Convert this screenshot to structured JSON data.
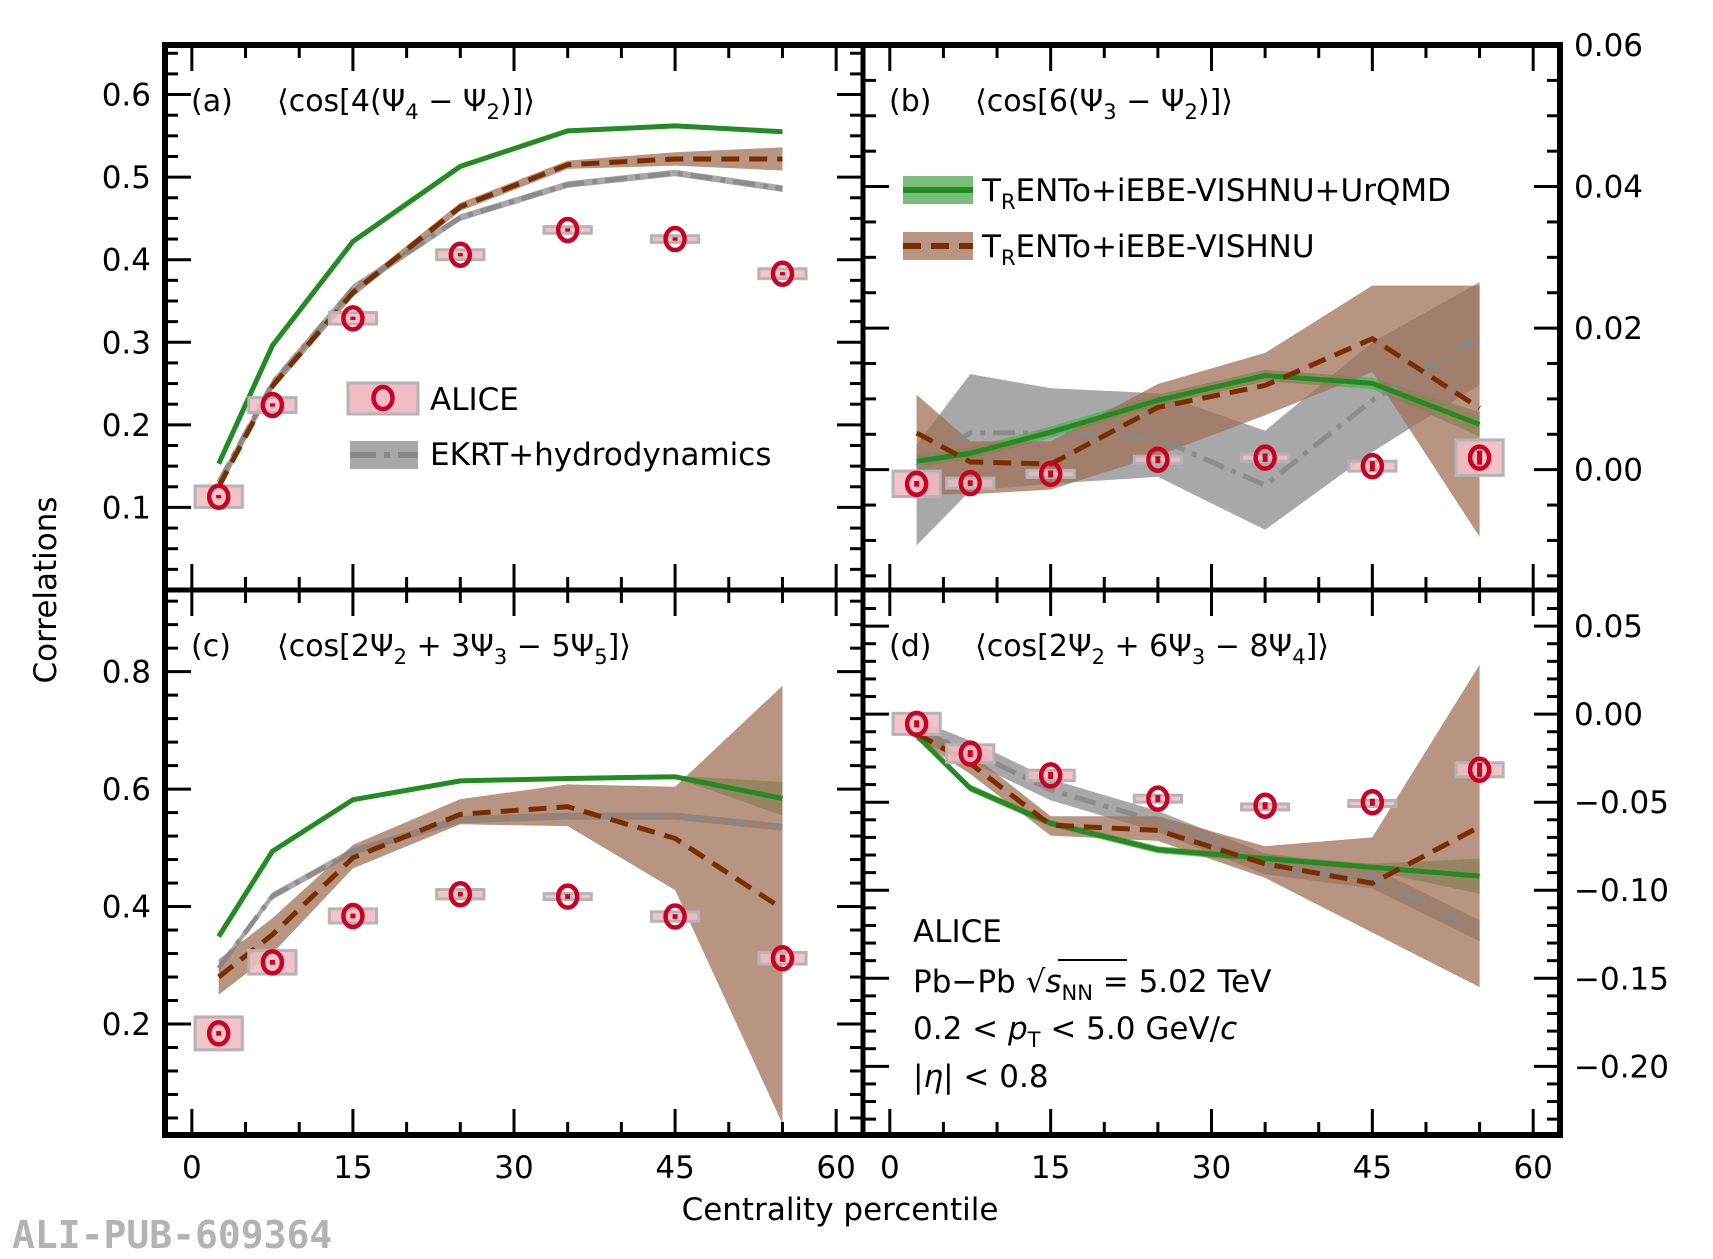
{
  "chart_data": {
    "type": "line",
    "figure": {
      "xlabel": "Centrality percentile",
      "ylabel": "Correlations",
      "watermark": "ALI-PUB-609364",
      "info_lines": [
        "ALICE",
        "Pb−Pb √s_NN = 5.02 TeV",
        "0.2 < p_T < 5.0 GeV/c",
        "|η| < 0.8"
      ],
      "info_panel": "d",
      "colors": {
        "alice_marker": "#cc0022",
        "alice_box": "#f2bcc4",
        "alice_box_edge": "#b4b4b4",
        "trento_urqmd_line": "#228b22",
        "trento_urqmd_band": "#5aae5a",
        "trento_line": "#7a2e00",
        "trento_band": "#a0705a",
        "ekrt_line": "#888888",
        "ekrt_band": "#999999"
      }
    },
    "legends": [
      {
        "panel": "a",
        "location": "center",
        "entries": [
          {
            "series": "ALICE",
            "label": "ALICE"
          },
          {
            "series": "EKRT",
            "label": "EKRT+hydrodynamics"
          }
        ]
      },
      {
        "panel": "b",
        "location": "upper-center",
        "entries": [
          {
            "series": "TRENTo_UrQMD",
            "label": "TRENTo+iEBE-VISHNU+UrQMD",
            "label_main": "T",
            "label_sub": "R",
            "label_rest": "ENTo+iEBE-VISHNU+UrQMD"
          },
          {
            "series": "TRENTo",
            "label": "TRENTo+iEBE-VISHNU",
            "label_main": "T",
            "label_sub": "R",
            "label_rest": "ENTo+iEBE-VISHNU"
          }
        ]
      }
    ],
    "panels": [
      {
        "id": "a",
        "tag": "(a)",
        "title": "⟨cos[4(Ψ₄ − Ψ₂)]⟩",
        "title_parts": [
          "⟨cos[4(Ψ",
          "4",
          " − Ψ",
          "2",
          ")]⟩"
        ],
        "xlim": [
          -2.5,
          62.5
        ],
        "ylim": [
          0.0,
          0.66
        ],
        "y_axis_side": "left",
        "xticks": [
          0,
          15,
          30,
          45,
          60
        ],
        "xtick_labels": [
          "0",
          "15",
          "30",
          "45",
          "60"
        ],
        "yticks": [
          0.1,
          0.2,
          0.3,
          0.4,
          0.5,
          0.6
        ],
        "ytick_labels": [
          "0.1",
          "0.2",
          "0.3",
          "0.4",
          "0.5",
          "0.6"
        ],
        "yminor": 0.025,
        "x": [
          2.5,
          7.5,
          15,
          25,
          35,
          45,
          55
        ],
        "series": [
          {
            "name": "EKRT",
            "style": "dashdot",
            "values": [
              0.13,
              0.25,
              0.365,
              0.451,
              0.491,
              0.505,
              0.486
            ],
            "band_low": [
              0.125,
              0.245,
              0.36,
              0.447,
              0.487,
              0.501,
              0.482
            ],
            "band_high": [
              0.135,
              0.255,
              0.37,
              0.455,
              0.495,
              0.509,
              0.49
            ]
          },
          {
            "name": "TRENTo_UrQMD",
            "style": "solid",
            "values": [
              0.153,
              0.296,
              0.422,
              0.513,
              0.556,
              0.562,
              0.555
            ],
            "band_low": [
              0.151,
              0.294,
              0.42,
              0.511,
              0.554,
              0.56,
              0.553
            ],
            "band_high": [
              0.155,
              0.298,
              0.424,
              0.515,
              0.558,
              0.564,
              0.557
            ]
          },
          {
            "name": "TRENTo",
            "style": "dashed",
            "values": [
              0.125,
              0.247,
              0.36,
              0.464,
              0.515,
              0.522,
              0.522
            ],
            "band_low": [
              0.12,
              0.242,
              0.355,
              0.459,
              0.51,
              0.514,
              0.508
            ],
            "band_high": [
              0.13,
              0.252,
              0.365,
              0.469,
              0.52,
              0.53,
              0.536
            ]
          }
        ],
        "alice": {
          "values": [
            0.113,
            0.224,
            0.329,
            0.406,
            0.436,
            0.425,
            0.383
          ],
          "stat": [
            0.002,
            0.002,
            0.002,
            0.002,
            0.002,
            0.002,
            0.002
          ],
          "sys": [
            0.013,
            0.009,
            0.007,
            0.006,
            0.004,
            0.004,
            0.006
          ],
          "xerr": [
            2.2,
            2.2,
            2.2,
            2.2,
            2.2,
            2.2,
            2.2
          ]
        }
      },
      {
        "id": "b",
        "tag": "(b)",
        "title": "⟨cos[6(Ψ₃ − Ψ₂)]⟩",
        "title_parts": [
          "⟨cos[6(Ψ",
          "3",
          " − Ψ",
          "2",
          ")]⟩"
        ],
        "xlim": [
          -2.5,
          62.5
        ],
        "ylim": [
          -0.017,
          0.06
        ],
        "y_axis_side": "right",
        "xticks": [
          0,
          15,
          30,
          45,
          60
        ],
        "xtick_labels": [
          "0",
          "15",
          "30",
          "45",
          "60"
        ],
        "yticks": [
          0.0,
          0.02,
          0.04,
          0.06
        ],
        "ytick_labels": [
          "0.00",
          "0.02",
          "0.04",
          "0.06"
        ],
        "yminor": 0.005,
        "x": [
          2.5,
          7.5,
          15,
          25,
          35,
          45,
          55
        ],
        "series": [
          {
            "name": "EKRT",
            "style": "dashdot",
            "values": [
              0.0005,
              0.0052,
              0.0052,
              0.0044,
              -0.0022,
              0.0098,
              0.0187
            ],
            "band_low": [
              -0.0107,
              -0.003,
              -0.002,
              -0.001,
              -0.0085,
              0.0025,
              0.012
            ],
            "band_high": [
              0.0035,
              0.0135,
              0.0115,
              0.0108,
              0.0055,
              0.018,
              0.0265
            ]
          },
          {
            "name": "TRENTo_UrQMD",
            "style": "solid",
            "values": [
              0.0012,
              0.0023,
              0.0053,
              0.0098,
              0.0133,
              0.0122,
              0.0064
            ],
            "band_low": [
              0.0004,
              0.0015,
              0.0045,
              0.009,
              0.0125,
              0.0114,
              0.0047
            ],
            "band_high": [
              0.002,
              0.0031,
              0.0061,
              0.0106,
              0.0141,
              0.013,
              0.0081
            ]
          },
          {
            "name": "TRENTo",
            "style": "dashed",
            "values": [
              0.0052,
              0.0011,
              0.0008,
              0.0088,
              0.0119,
              0.0185,
              0.0087
            ],
            "band_low": [
              -0.0035,
              -0.0035,
              -0.0028,
              0.002,
              0.0077,
              0.0138,
              -0.0095
            ],
            "band_high": [
              0.0106,
              0.004,
              0.004,
              0.0121,
              0.0165,
              0.026,
              0.026
            ]
          }
        ],
        "alice": {
          "values": [
            -0.002,
            -0.0019,
            -0.0006,
            0.0014,
            0.0017,
            0.0005,
            0.0017
          ],
          "stat": [
            0.0004,
            0.0004,
            0.0005,
            0.0005,
            0.0006,
            0.0007,
            0.001
          ],
          "sys": [
            0.0018,
            0.0007,
            0.0005,
            0.0005,
            0.0005,
            0.0007,
            0.0025
          ],
          "xerr": [
            2.2,
            2.2,
            2.2,
            2.2,
            2.2,
            2.2,
            2.2
          ]
        }
      },
      {
        "id": "c",
        "tag": "(c)",
        "title": "⟨cos[2Ψ₂ + 3Ψ₃ − 5Ψ₅]⟩",
        "title_parts": [
          "⟨cos[2Ψ",
          "2",
          " + 3Ψ",
          "3",
          " − 5Ψ",
          "5",
          "]⟩"
        ],
        "xlim": [
          -2.5,
          62.5
        ],
        "ylim": [
          0.011,
          0.939
        ],
        "y_axis_side": "left",
        "xticks": [
          0,
          15,
          30,
          45,
          60
        ],
        "xtick_labels": [
          "0",
          "15",
          "30",
          "45",
          "60"
        ],
        "yticks": [
          0.2,
          0.4,
          0.6,
          0.8
        ],
        "ytick_labels": [
          "0.2",
          "0.4",
          "0.6",
          "0.8"
        ],
        "yminor": 0.04,
        "x": [
          2.5,
          7.5,
          15,
          25,
          35,
          45,
          55
        ],
        "series": [
          {
            "name": "EKRT",
            "style": "dashdot",
            "values": [
              0.295,
              0.418,
              0.494,
              0.548,
              0.554,
              0.554,
              0.535
            ],
            "band_low": [
              0.289,
              0.412,
              0.488,
              0.542,
              0.548,
              0.548,
              0.529
            ],
            "band_high": [
              0.301,
              0.424,
              0.5,
              0.554,
              0.56,
              0.56,
              0.541
            ]
          },
          {
            "name": "TRENTo_UrQMD",
            "style": "solid",
            "values": [
              0.349,
              0.494,
              0.582,
              0.614,
              0.618,
              0.621,
              0.584
            ],
            "band_low": [
              0.347,
              0.492,
              0.58,
              0.612,
              0.616,
              0.619,
              0.555
            ],
            "band_high": [
              0.351,
              0.496,
              0.584,
              0.616,
              0.62,
              0.623,
              0.612
            ]
          },
          {
            "name": "TRENTo",
            "style": "dashed",
            "values": [
              0.28,
              0.352,
              0.483,
              0.557,
              0.57,
              0.516,
              0.396
            ],
            "band_low": [
              0.25,
              0.32,
              0.465,
              0.54,
              0.537,
              0.428,
              0.03
            ],
            "band_high": [
              0.31,
              0.38,
              0.505,
              0.583,
              0.608,
              0.604,
              0.776
            ]
          }
        ],
        "alice": {
          "values": [
            0.184,
            0.305,
            0.384,
            0.421,
            0.417,
            0.383,
            0.312
          ],
          "stat": [
            0.004,
            0.004,
            0.004,
            0.004,
            0.004,
            0.004,
            0.006
          ],
          "sys": [
            0.028,
            0.02,
            0.012,
            0.008,
            0.005,
            0.008,
            0.01
          ],
          "xerr": [
            2.2,
            2.2,
            2.2,
            2.2,
            2.2,
            2.2,
            2.2
          ]
        }
      },
      {
        "id": "d",
        "tag": "(d)",
        "title": "⟨cos[2Ψ₂ + 6Ψ₃ − 8Ψ₄]⟩",
        "title_parts": [
          "⟨cos[2Ψ",
          "2",
          " + 6Ψ",
          "3",
          " − 8Ψ",
          "4",
          "]⟩"
        ],
        "xlim": [
          -2.5,
          62.5
        ],
        "ylim": [
          -0.239,
          0.0705
        ],
        "y_axis_side": "right",
        "xticks": [
          0,
          15,
          30,
          45,
          60
        ],
        "xtick_labels": [
          "0",
          "15",
          "30",
          "45",
          "60"
        ],
        "yticks": [
          -0.2,
          -0.15,
          -0.1,
          -0.05,
          0.0,
          0.05
        ],
        "ytick_labels": [
          "−0.20",
          "−0.15",
          "−0.10",
          "−0.05",
          "0.00",
          "0.05"
        ],
        "yminor": 0.01,
        "x": [
          2.5,
          7.5,
          15,
          25,
          35,
          45,
          55
        ],
        "series": [
          {
            "name": "EKRT",
            "style": "dashdot",
            "values": [
              -0.009,
              -0.021,
              -0.043,
              -0.061,
              -0.085,
              -0.093,
              -0.123
            ],
            "band_low": [
              -0.015,
              -0.027,
              -0.049,
              -0.067,
              -0.091,
              -0.099,
              -0.129
            ],
            "band_high": [
              -0.003,
              -0.015,
              -0.037,
              -0.055,
              -0.079,
              -0.087,
              -0.117
            ]
          },
          {
            "name": "TRENTo_UrQMD",
            "style": "solid",
            "values": [
              -0.012,
              -0.042,
              -0.062,
              -0.077,
              -0.082,
              -0.087,
              -0.092
            ],
            "band_low": [
              -0.014,
              -0.044,
              -0.064,
              -0.079,
              -0.084,
              -0.089,
              -0.102
            ],
            "band_high": [
              -0.01,
              -0.04,
              -0.06,
              -0.075,
              -0.08,
              -0.085,
              -0.082
            ]
          },
          {
            "name": "TRENTo",
            "style": "dashed",
            "values": [
              -0.011,
              -0.028,
              -0.063,
              -0.066,
              -0.085,
              -0.096,
              -0.064
            ],
            "band_low": [
              -0.014,
              -0.034,
              -0.069,
              -0.072,
              -0.093,
              -0.124,
              -0.155
            ],
            "band_high": [
              -0.006,
              -0.022,
              -0.058,
              -0.058,
              -0.075,
              -0.07,
              0.028
            ]
          }
        ],
        "alice": {
          "values": [
            -0.0055,
            -0.0224,
            -0.0348,
            -0.048,
            -0.052,
            -0.05,
            -0.0316
          ],
          "stat": [
            0.002,
            0.002,
            0.002,
            0.002,
            0.002,
            0.002,
            0.004
          ],
          "sys": [
            0.006,
            0.005,
            0.003,
            0.002,
            0.001,
            0.001,
            0.004
          ],
          "xerr": [
            2.2,
            2.2,
            2.2,
            2.2,
            2.2,
            2.2,
            2.2
          ]
        }
      }
    ]
  }
}
